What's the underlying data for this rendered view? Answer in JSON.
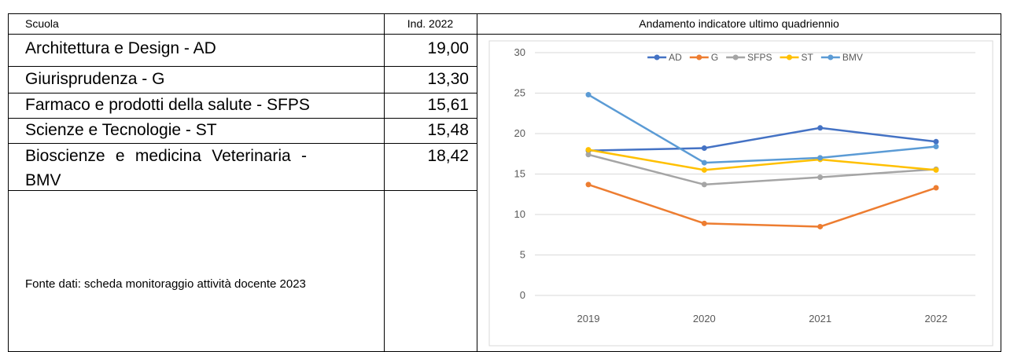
{
  "header": {
    "school": "Scuola",
    "indicator": "Ind. 2022",
    "trend": "Andamento indicatore ultimo quadriennio"
  },
  "table": {
    "rows": [
      [
        "Architettura e Design - AD",
        "19,00"
      ],
      [
        "Giurisprudenza - G",
        "13,30"
      ],
      [
        "Farmaco e prodotti della salute - SFPS",
        "15,61"
      ],
      [
        "Scienze e Tecnologie - ST",
        "15,48"
      ],
      [
        "Bioscienze e medicina Veterinaria - BMV",
        "18,42"
      ]
    ]
  },
  "source": "Fonte dati: scheda monitoraggio attività docente 2023",
  "chart_data": {
    "type": "line",
    "categories": [
      "2019",
      "2020",
      "2021",
      "2022"
    ],
    "series": [
      {
        "name": "AD",
        "color": "#4472c4",
        "values": [
          17.9,
          18.2,
          20.7,
          19.0
        ]
      },
      {
        "name": "G",
        "color": "#ed7d31",
        "values": [
          13.7,
          8.9,
          8.5,
          13.3
        ]
      },
      {
        "name": "SFPS",
        "color": "#a5a5a5",
        "values": [
          17.4,
          13.7,
          14.6,
          15.6
        ]
      },
      {
        "name": "ST",
        "color": "#ffc000",
        "values": [
          18.0,
          15.5,
          16.8,
          15.5
        ]
      },
      {
        "name": "BMV",
        "color": "#5b9bd5",
        "values": [
          24.8,
          16.4,
          17.0,
          18.4
        ]
      }
    ],
    "ylim": [
      0,
      30
    ],
    "yticks": [
      0,
      5,
      10,
      15,
      20,
      25,
      30
    ],
    "grid": true,
    "legend": "top"
  }
}
